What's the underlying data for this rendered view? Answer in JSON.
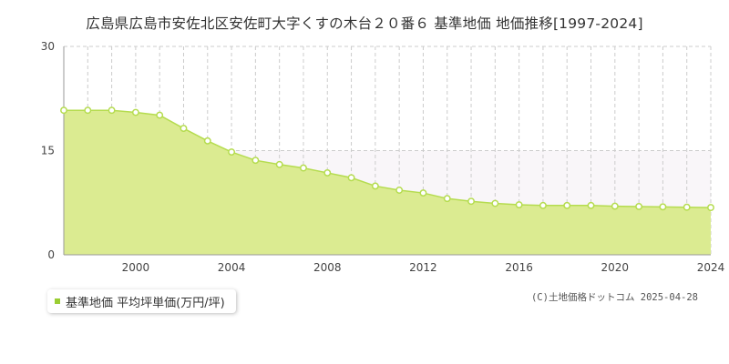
{
  "title": "広島県広島市安佐北区安佐町大字くすの木台２０番６ 基準地価 地価推移[1997-2024]",
  "legend": {
    "label": "基準地価 平均坪単価(万円/坪)",
    "color": "#9acd32"
  },
  "copyright": "(C)土地価格ドットコム 2025-04-28",
  "colors": {
    "line": "#b5dc4f",
    "fill": "#dbeb91",
    "marker": "#b5dc4f",
    "grid": "#cccccc",
    "band": "#f9f6f9"
  },
  "chart_data": {
    "type": "area",
    "title": "",
    "xlabel": "",
    "ylabel": "",
    "xlim": [
      1997,
      2024
    ],
    "ylim": [
      0,
      30
    ],
    "y_ticks": [
      0,
      15,
      30
    ],
    "x_ticks": [
      2000,
      2004,
      2008,
      2012,
      2016,
      2020,
      2024
    ],
    "grid": true,
    "legend_position": "bottom-left",
    "series": [
      {
        "name": "基準地価 平均坪単価(万円/坪)",
        "x": [
          1997,
          1998,
          1999,
          2000,
          2001,
          2002,
          2003,
          2004,
          2005,
          2006,
          2007,
          2008,
          2009,
          2010,
          2011,
          2012,
          2013,
          2014,
          2015,
          2016,
          2017,
          2018,
          2019,
          2020,
          2021,
          2022,
          2023,
          2024
        ],
        "values": [
          20.8,
          20.8,
          20.8,
          20.5,
          20.1,
          18.2,
          16.4,
          14.8,
          13.6,
          13.0,
          12.5,
          11.8,
          11.1,
          9.9,
          9.3,
          8.9,
          8.1,
          7.7,
          7.4,
          7.2,
          7.1,
          7.1,
          7.1,
          7.0,
          6.95,
          6.9,
          6.85,
          6.8
        ]
      }
    ]
  }
}
